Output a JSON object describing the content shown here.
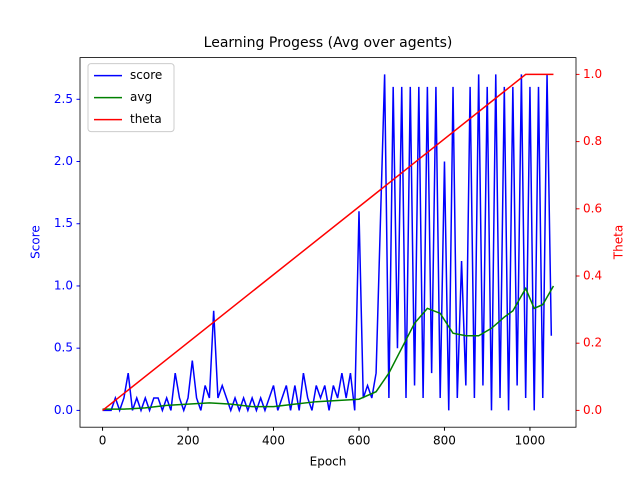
{
  "chart_data": {
    "type": "line",
    "title": "Learning Progess (Avg over agents)",
    "xlabel": "Epoch",
    "ylabel": "Score",
    "y2label": "Theta",
    "xlim": [
      -52.75,
      1107.75
    ],
    "ylim": [
      -0.135,
      2.835
    ],
    "y2lim": [
      -0.05,
      1.05
    ],
    "xticks": [
      0,
      200,
      400,
      600,
      800,
      1000
    ],
    "yticks": [
      {
        "value": 0,
        "label": "0.0"
      },
      {
        "value": 0.5,
        "label": "0.5"
      },
      {
        "value": 1,
        "label": "1.0"
      },
      {
        "value": 1.5,
        "label": "1.5"
      },
      {
        "value": 2,
        "label": "2.0"
      },
      {
        "value": 2.5,
        "label": "2.5"
      }
    ],
    "y2ticks": [
      {
        "value": 0,
        "label": "0.0"
      },
      {
        "value": 0.2,
        "label": "0.2"
      },
      {
        "value": 0.4,
        "label": "0.4"
      },
      {
        "value": 0.6,
        "label": "0.6"
      },
      {
        "value": 0.8,
        "label": "0.8"
      },
      {
        "value": 1,
        "label": "1.0"
      }
    ],
    "ycolor": "#0000ff",
    "y2color": "#ff0000",
    "legend": "upper left",
    "series": [
      {
        "name": "score",
        "color": "#0000ff",
        "x": [
          0,
          10,
          20,
          30,
          40,
          50,
          60,
          70,
          80,
          90,
          100,
          110,
          120,
          130,
          140,
          150,
          160,
          170,
          180,
          190,
          200,
          210,
          220,
          230,
          240,
          250,
          260,
          270,
          280,
          290,
          300,
          310,
          320,
          330,
          340,
          350,
          360,
          370,
          380,
          390,
          400,
          410,
          420,
          430,
          440,
          450,
          460,
          470,
          480,
          490,
          500,
          510,
          520,
          530,
          540,
          550,
          560,
          570,
          580,
          590,
          600,
          610,
          620,
          630,
          640,
          650,
          660,
          670,
          680,
          690,
          700,
          710,
          720,
          730,
          740,
          750,
          760,
          770,
          780,
          790,
          800,
          810,
          820,
          830,
          840,
          850,
          860,
          870,
          880,
          890,
          900,
          910,
          920,
          930,
          940,
          950,
          960,
          970,
          980,
          990,
          1000,
          1010,
          1020,
          1030,
          1040,
          1050
        ],
        "values": [
          0,
          0,
          0,
          0.1,
          0,
          0.1,
          0.3,
          0,
          0.1,
          0,
          0.1,
          0,
          0.1,
          0.1,
          0,
          0.1,
          0,
          0.3,
          0.1,
          0,
          0.1,
          0.4,
          0.1,
          0,
          0.2,
          0.1,
          0.8,
          0.1,
          0.2,
          0.1,
          0,
          0.1,
          0,
          0.1,
          0,
          0.1,
          0,
          0.1,
          0,
          0.1,
          0.2,
          0,
          0.1,
          0.2,
          0,
          0.2,
          0,
          0.3,
          0.1,
          0,
          0.2,
          0.1,
          0.2,
          0,
          0.2,
          0.1,
          0.3,
          0.1,
          0.3,
          0,
          1.6,
          0.1,
          0.2,
          0.1,
          0.3,
          1.5,
          2.7,
          0.1,
          2.6,
          0.5,
          2.6,
          0.1,
          2.6,
          0.2,
          2.6,
          0.1,
          2.6,
          0.3,
          2.6,
          0.1,
          2,
          0,
          2.6,
          0.1,
          1.2,
          0.2,
          2.6,
          0.1,
          2.7,
          0.2,
          2.6,
          0,
          2.7,
          0.1,
          2.6,
          0,
          2.6,
          0.2,
          2.7,
          0.1,
          2.6,
          0,
          2.6,
          0.1,
          2.7,
          0.6
        ]
      },
      {
        "name": "avg",
        "color": "#008000",
        "x": [
          0,
          50,
          100,
          150,
          200,
          250,
          300,
          350,
          400,
          450,
          500,
          550,
          600,
          640,
          670,
          700,
          730,
          760,
          790,
          820,
          850,
          880,
          910,
          940,
          960,
          990,
          1010,
          1030,
          1055
        ],
        "values": [
          0.01,
          0.01,
          0.02,
          0.04,
          0.05,
          0.06,
          0.05,
          0.03,
          0.03,
          0.05,
          0.07,
          0.08,
          0.09,
          0.15,
          0.3,
          0.5,
          0.7,
          0.82,
          0.78,
          0.62,
          0.6,
          0.6,
          0.66,
          0.75,
          0.8,
          0.98,
          0.82,
          0.85,
          1.0
        ]
      },
      {
        "name": "theta",
        "color": "#ff0000",
        "axis": "y2",
        "x": [
          0,
          990,
          1055
        ],
        "values": [
          0,
          1,
          1
        ]
      }
    ]
  }
}
